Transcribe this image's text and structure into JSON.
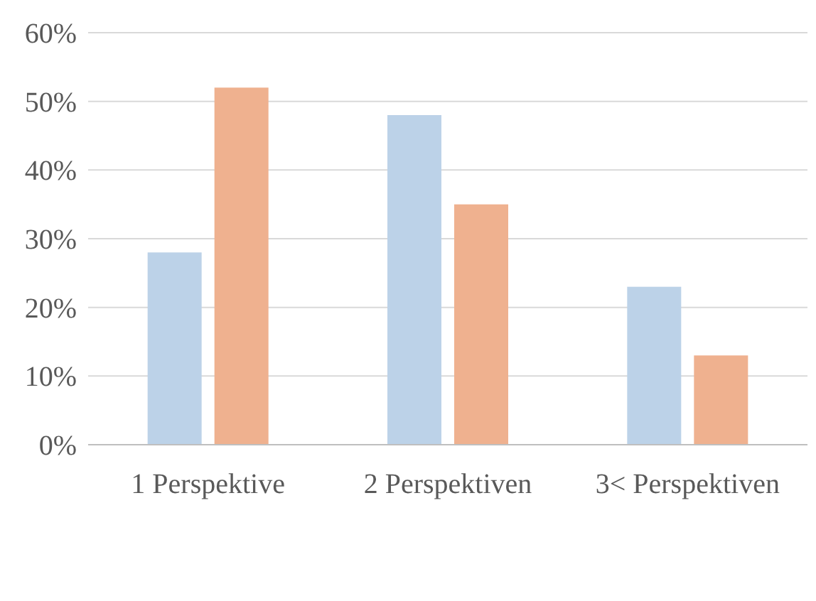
{
  "chart_data": {
    "type": "bar",
    "categories": [
      "1 Perspektive",
      "2 Perspektiven",
      "3< Perspektiven"
    ],
    "series": [
      {
        "color": "#bcd2e8",
        "values": [
          28,
          48,
          23
        ]
      },
      {
        "color": "#efb18f",
        "values": [
          52,
          35,
          13
        ]
      }
    ],
    "ylim": [
      0,
      60
    ],
    "yticks": [
      {
        "value": 0,
        "label": "0%"
      },
      {
        "value": 10,
        "label": "10%"
      },
      {
        "value": 20,
        "label": "20%"
      },
      {
        "value": 30,
        "label": "30%"
      },
      {
        "value": 40,
        "label": "40%"
      },
      {
        "value": 50,
        "label": "50%"
      },
      {
        "value": 60,
        "label": "60%"
      }
    ],
    "grid": "y"
  }
}
